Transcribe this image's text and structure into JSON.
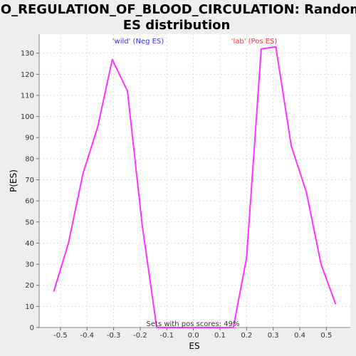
{
  "chart_data": {
    "type": "line",
    "title_line1": "GO_REGULATION_OF_BLOOD_CIRCULATION: Random",
    "title_line2": "ES distribution",
    "xlabel": "ES",
    "ylabel": "P(ES)",
    "xlim": [
      -0.58,
      0.59
    ],
    "ylim": [
      0,
      139
    ],
    "x_ticks": [
      -0.5,
      -0.4,
      -0.3,
      -0.2,
      -0.1,
      0.0,
      0.1,
      0.2,
      0.3,
      0.4,
      0.5
    ],
    "x_tick_labels": [
      "-0.5",
      "-0.4",
      "-0.3",
      "-0.2",
      "-0.1",
      "0.0",
      "0.1",
      "0.2",
      "0.3",
      "0.4",
      "0.5"
    ],
    "y_ticks": [
      0,
      10,
      20,
      30,
      40,
      50,
      60,
      70,
      80,
      90,
      100,
      110,
      120,
      130
    ],
    "grid": true,
    "annotations": {
      "neg": {
        "text": "'wild' (Neg ES)",
        "color": "#3333ff"
      },
      "pos": {
        "text": "'lab' (Pos ES)",
        "color": "#ff3333"
      },
      "bottom": {
        "text": "Sets with pos scores: 49%",
        "color": "#333333"
      }
    },
    "series": [
      {
        "color": "#ff33ff",
        "x": [
          -0.525,
          -0.47,
          -0.415,
          -0.36,
          -0.305,
          -0.248,
          -0.192,
          -0.138,
          0.0,
          0.15,
          0.2,
          0.255,
          0.31,
          0.368,
          0.425,
          0.48,
          0.535
        ],
        "y": [
          17,
          40,
          73,
          95,
          127,
          112,
          48,
          0,
          0,
          0,
          33,
          132,
          133,
          86,
          64,
          30,
          11
        ]
      }
    ]
  }
}
